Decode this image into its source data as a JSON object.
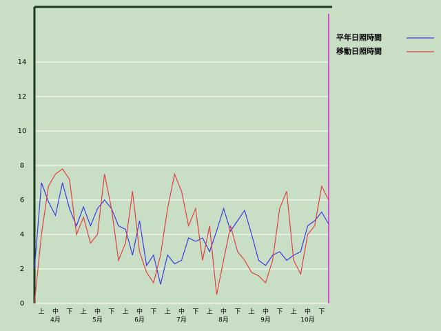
{
  "chart_data": {
    "type": "line",
    "x": [
      0,
      0.5,
      1,
      1.5,
      2,
      2.5,
      3,
      3.5,
      4,
      4.5,
      5,
      5.5,
      6,
      6.5,
      7,
      7.5,
      8,
      8.5,
      9,
      9.5,
      10,
      10.5,
      11,
      11.5,
      12,
      12.5,
      13,
      13.5,
      14,
      14.5,
      15,
      15.5,
      16,
      16.5,
      17,
      17.5,
      18,
      18.5,
      19,
      19.5,
      20,
      20.5,
      21
    ],
    "series": [
      {
        "name": "平年日照時間",
        "color": "#3a3ae0",
        "values": [
          2,
          7.0,
          5.9,
          5.1,
          7.0,
          5.5,
          4.5,
          5.6,
          4.5,
          5.5,
          6.0,
          5.5,
          4.5,
          4.3,
          2.8,
          4.8,
          2.2,
          2.8,
          1.1,
          2.8,
          2.3,
          2.5,
          3.8,
          3.6,
          3.8,
          3.0,
          4.2,
          5.5,
          4.2,
          4.8,
          5.4,
          4.0,
          2.5,
          2.2,
          2.8,
          3.0,
          2.5,
          2.8,
          3.0,
          4.5,
          4.8,
          5.3,
          4.6
        ]
      },
      {
        "name": "移動日照時間",
        "color": "#e04040",
        "values": [
          0,
          4.0,
          6.8,
          7.5,
          7.8,
          7.2,
          4.0,
          5.0,
          3.5,
          4.0,
          7.5,
          5.5,
          2.5,
          3.5,
          6.5,
          3.0,
          1.8,
          1.2,
          2.8,
          5.5,
          7.5,
          6.5,
          4.5,
          5.5,
          2.5,
          4.5,
          0.5,
          2.5,
          4.5,
          3.0,
          2.5,
          1.8,
          1.6,
          1.2,
          2.5,
          5.5,
          6.5,
          2.5,
          1.7,
          4.0,
          4.5,
          6.8,
          6.0
        ]
      }
    ],
    "categories": [
      "上",
      "中",
      "下",
      "上",
      "中",
      "下",
      "上",
      "中",
      "下",
      "上",
      "中",
      "下",
      "上",
      "中",
      "下",
      "上",
      "中",
      "下",
      "上",
      "中",
      "下"
    ],
    "month_labels": [
      "4月",
      "5月",
      "6月",
      "7月",
      "8月",
      "9月",
      "10月"
    ],
    "xlim": [
      0,
      21
    ],
    "ylim": [
      0,
      17.2
    ],
    "yticks": [
      0,
      2,
      4,
      6,
      8,
      10,
      12,
      14
    ],
    "grid": true
  }
}
